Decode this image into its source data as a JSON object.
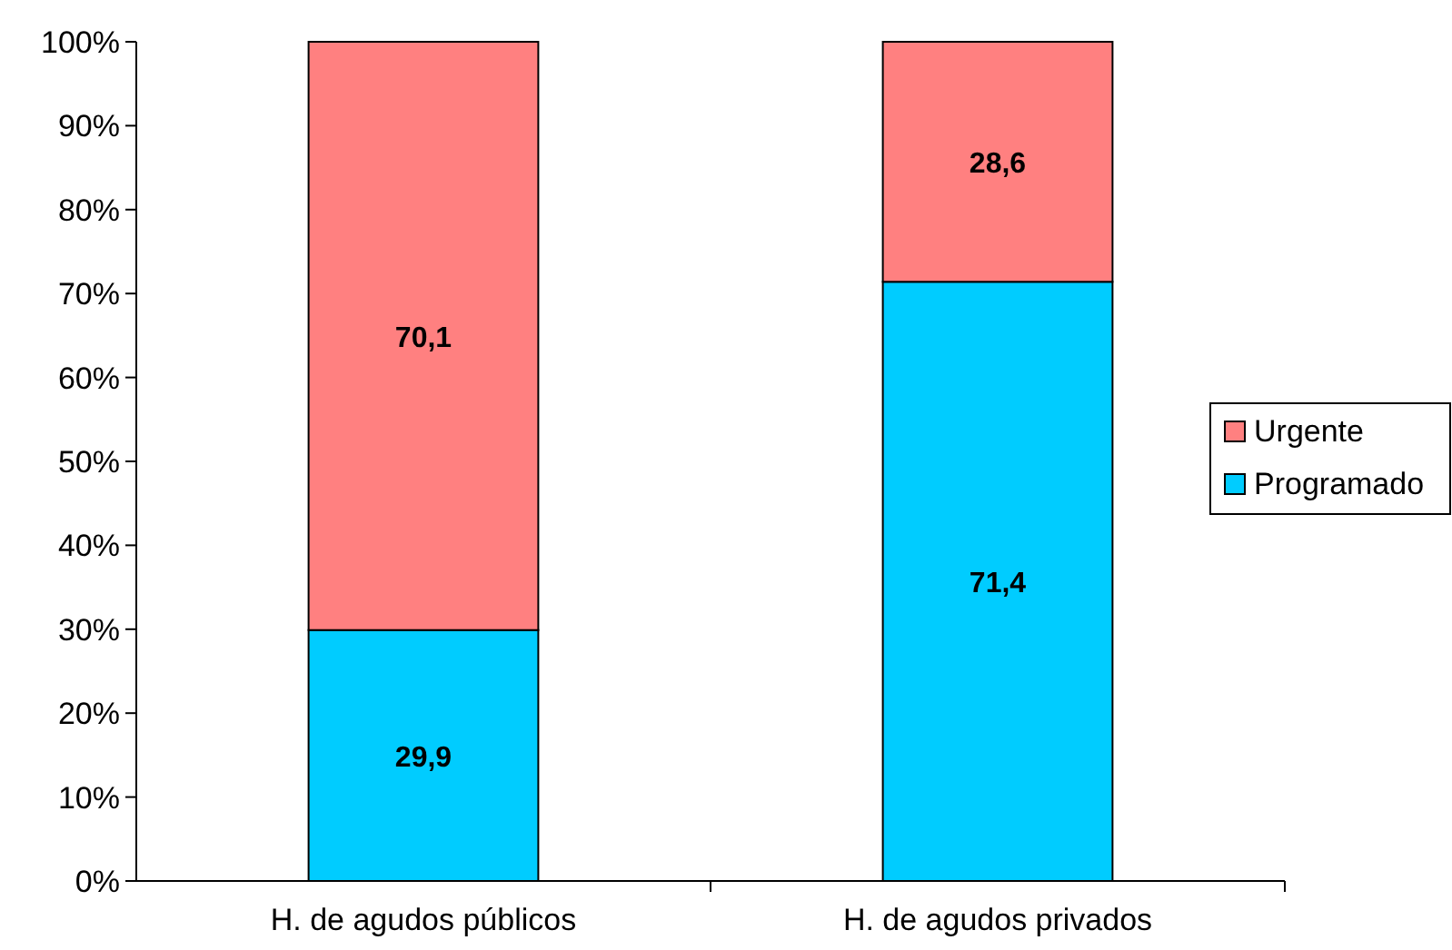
{
  "chart_data": {
    "type": "bar",
    "stacked": true,
    "categories": [
      "H. de agudos públicos",
      "H. de agudos privados"
    ],
    "series": [
      {
        "name": "Programado",
        "color": "#00ccff",
        "values": [
          29.9,
          71.4
        ],
        "value_labels": [
          "29,9",
          "71,4"
        ]
      },
      {
        "name": "Urgente",
        "color": "#ff8080",
        "values": [
          70.1,
          28.6
        ],
        "value_labels": [
          "70,1",
          "28,6"
        ]
      }
    ],
    "ylim": [
      0,
      100
    ],
    "yticks": [
      {
        "value": 0,
        "label": "0%"
      },
      {
        "value": 10,
        "label": "10%"
      },
      {
        "value": 20,
        "label": "20%"
      },
      {
        "value": 30,
        "label": "30%"
      },
      {
        "value": 40,
        "label": "40%"
      },
      {
        "value": 50,
        "label": "50%"
      },
      {
        "value": 60,
        "label": "60%"
      },
      {
        "value": 70,
        "label": "70%"
      },
      {
        "value": 80,
        "label": "80%"
      },
      {
        "value": 90,
        "label": "90%"
      },
      {
        "value": 100,
        "label": "100%"
      }
    ],
    "grid": false,
    "legend": "right"
  }
}
